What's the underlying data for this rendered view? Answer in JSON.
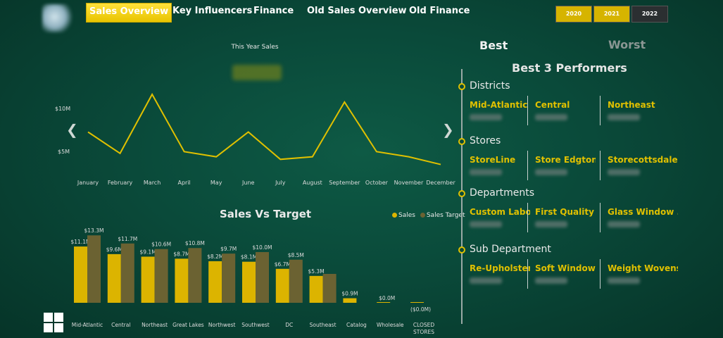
{
  "nav": {
    "tabs": [
      {
        "label": "Sales Overview",
        "active": true
      },
      {
        "label": "Key Influencers",
        "active": false
      },
      {
        "label": "Finance",
        "active": false
      },
      {
        "label": "Old Sales Overview",
        "active": false
      },
      {
        "label": "Old Finance",
        "active": false
      }
    ],
    "years": [
      {
        "label": "2020",
        "selected": true
      },
      {
        "label": "2021",
        "selected": true
      },
      {
        "label": "2022",
        "selected": false
      }
    ]
  },
  "line_chart": {
    "title": "This Year Sales",
    "y_ticks": [
      "$10M",
      "$5M"
    ]
  },
  "bar_chart": {
    "title": "Sales Vs Target",
    "legend": [
      "Sales",
      "Sales Target"
    ]
  },
  "right_panel": {
    "best_label": "Best",
    "worst_label": "Worst",
    "title": "Best 3 Performers",
    "groups": [
      {
        "name": "Districts",
        "items": [
          "Mid-Atlantic",
          "Central",
          "Northeast"
        ]
      },
      {
        "name": "Stores",
        "items": [
          "StoreLine",
          "Store Edgton",
          "Storecottsdale"
        ]
      },
      {
        "name": "Departments",
        "items": [
          "Custom Labor",
          "First Quality",
          "Glass Window ..."
        ]
      },
      {
        "name": "Sub Department",
        "items": [
          "Re-Upholstery",
          "Soft Window ...",
          "Weight Wovens"
        ]
      }
    ]
  },
  "colors": {
    "sales": "#dcb400",
    "target": "#6b6232",
    "accent": "#e0c000"
  },
  "chart_data": [
    {
      "type": "line",
      "title": "This Year Sales",
      "x": [
        "January",
        "February",
        "March",
        "April",
        "May",
        "June",
        "July",
        "August",
        "September",
        "October",
        "November",
        "December"
      ],
      "series": [
        {
          "values": [
            6.8,
            4.3,
            11.2,
            4.5,
            3.9,
            6.8,
            3.6,
            3.9,
            10.3,
            4.5,
            3.9,
            3.0
          ]
        }
      ],
      "y_ticks": [
        "$10M",
        "$5M"
      ],
      "ylim": [
        0,
        14
      ]
    },
    {
      "type": "bar",
      "title": "Sales Vs Target",
      "categories": [
        "Mid-Atlantic",
        "Central",
        "Northeast",
        "Great Lakes",
        "Northwest",
        "Southwest",
        "DC",
        "Southeast",
        "Catalog",
        "Wholesale",
        "CLOSED STORES"
      ],
      "series": [
        {
          "name": "Sales",
          "values": [
            11.1,
            9.6,
            9.1,
            8.7,
            8.2,
            8.1,
            6.7,
            5.3,
            0.9,
            0.0,
            0.0
          ],
          "labels": [
            "$11.1M",
            "$9.6M",
            "$9.1M",
            "$8.7M",
            "$8.2M",
            "$8.1M",
            "$6.7M",
            "$5.3M",
            "$0.9M",
            "$0.0M",
            "($0.0M)"
          ]
        },
        {
          "name": "Sales Target",
          "values": [
            13.3,
            11.7,
            10.6,
            10.8,
            9.7,
            10.0,
            8.5,
            5.7,
            0,
            0,
            0
          ],
          "labels": [
            "$13.3M",
            "$11.7M",
            "$10.6M",
            "$10.8M",
            "$9.7M",
            "$10.0M",
            "$8.5M",
            "",
            "",
            "",
            ""
          ]
        }
      ],
      "legend": "top-right"
    }
  ]
}
